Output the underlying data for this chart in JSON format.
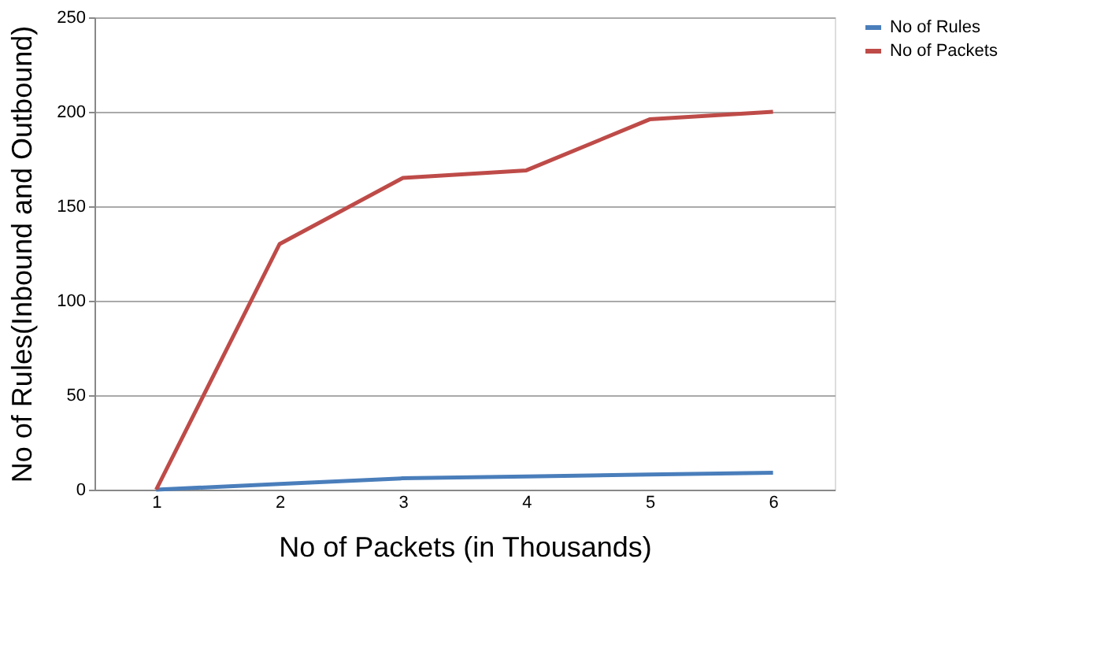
{
  "chart_data": {
    "type": "line",
    "xlabel": "No of Packets (in Thousands)",
    "ylabel": "No of Rules(Inbound and Outbound)",
    "categories": [
      "1",
      "2",
      "3",
      "4",
      "5",
      "6"
    ],
    "series": [
      {
        "name": "No of Rules",
        "color": "#4a7ebb",
        "values": [
          0,
          3,
          6,
          7,
          8,
          9
        ]
      },
      {
        "name": "No of Packets",
        "color": "#be4b48",
        "values": [
          0,
          130,
          165,
          169,
          196,
          200
        ]
      }
    ],
    "ylim": [
      0,
      250
    ],
    "yticks": [
      0,
      50,
      100,
      150,
      200,
      250
    ],
    "grid": "y",
    "legend": "right",
    "marker": "none",
    "line_style": "solid"
  }
}
